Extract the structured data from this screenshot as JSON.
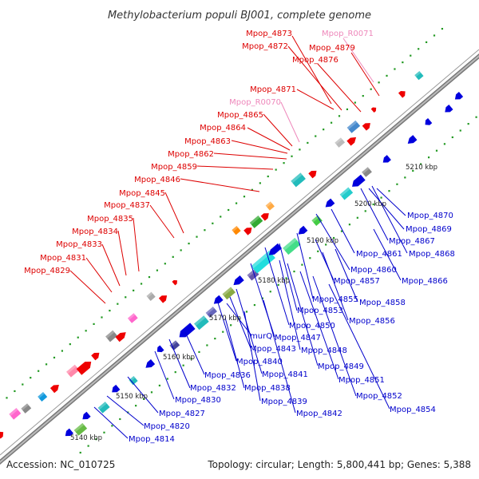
{
  "title": "Methylobacterium populi BJ001, complete genome",
  "footer": {
    "accession": "Accession: NC_010725",
    "summary": "Topology: circular; Length: 5,800,441 bp; Genes: 5,388"
  },
  "colors": {
    "backbone": "#888888",
    "forward_label": "#dd0000",
    "reverse_label": "#0000cc",
    "rna_label": "#ee88bb",
    "ticks": "#229922"
  },
  "kbp_ticks": [
    "5140 kbp",
    "5150 kbp",
    "5160 kbp",
    "5170 kbp",
    "5180 kbp",
    "5190 kbp",
    "5200 kbp",
    "5210 kbp"
  ],
  "forward_labels": [
    "Mpop_4873",
    "Mpop_R0071",
    "Mpop_4872",
    "Mpop_4879",
    "Mpop_4876",
    "Mpop_4871",
    "Mpop_R0070",
    "Mpop_4865",
    "Mpop_4864",
    "Mpop_4863",
    "Mpop_4862",
    "Mpop_4859",
    "Mpop_4846",
    "Mpop_4845",
    "Mpop_4837",
    "Mpop_4835",
    "Mpop_4834",
    "Mpop_4833",
    "Mpop_4831",
    "Mpop_4829"
  ],
  "reverse_labels": [
    "Mpop_4870",
    "Mpop_4869",
    "Mpop_4867",
    "Mpop_4868",
    "Mpop_4861",
    "Mpop_4860",
    "Mpop_4866",
    "Mpop_4857",
    "Mpop_4858",
    "Mpop_4855",
    "Mpop_4853",
    "Mpop_4856",
    "Mpop_4850",
    "Mpop_4847",
    "Mpop_4848",
    "murQ",
    "Mpop_4843",
    "Mpop_4849",
    "Mpop_4840",
    "Mpop_4841",
    "Mpop_4851",
    "Mpop_4836",
    "Mpop_4838",
    "Mpop_4832",
    "Mpop_4852",
    "Mpop_4839",
    "Mpop_4830",
    "Mpop_4842",
    "Mpop_4854",
    "Mpop_4827",
    "Mpop_4820",
    "Mpop_4814"
  ]
}
